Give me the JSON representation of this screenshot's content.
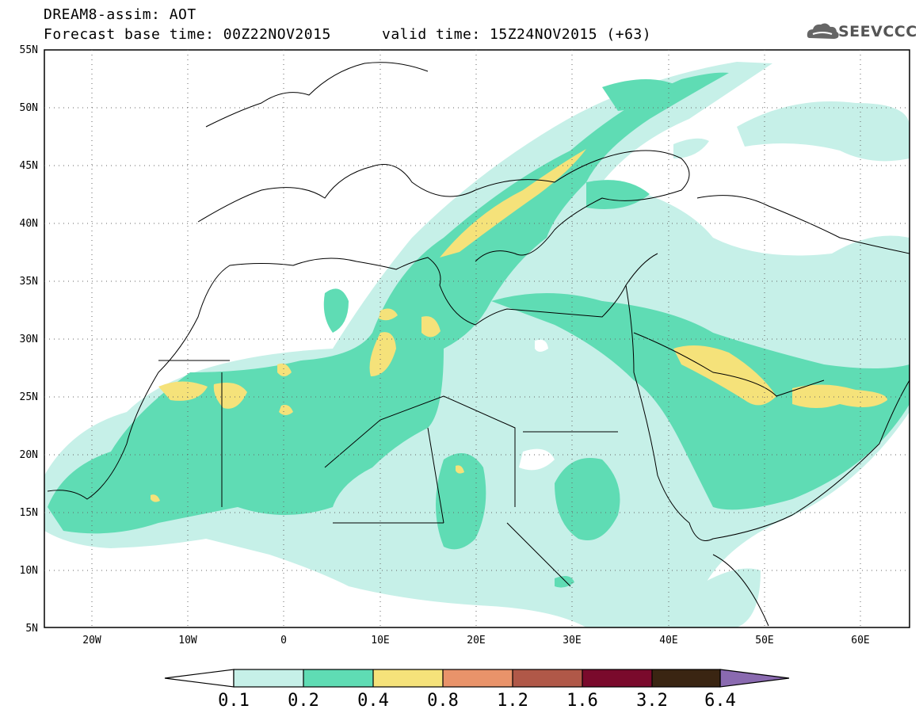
{
  "title_line1": "DREAM8-assim: AOT",
  "title_base": "Forecast base time: 00Z22NOV2015",
  "title_valid": "valid time: 15Z24NOV2015 (+63)",
  "logo_text": "SEEVCCC",
  "logo_icon": "cloud-icon",
  "map": {
    "lat_ticks": [
      "55N",
      "50N",
      "45N",
      "40N",
      "35N",
      "30N",
      "25N",
      "20N",
      "15N",
      "10N",
      "5N"
    ],
    "lon_ticks": [
      "20W",
      "10W",
      "0",
      "10E",
      "20E",
      "30E",
      "40E",
      "50E",
      "60E"
    ],
    "lon_range": [
      -25,
      65
    ],
    "lat_range": [
      5,
      55
    ]
  },
  "colorbar": {
    "levels": [
      "0.1",
      "0.2",
      "0.4",
      "0.8",
      "1.2",
      "1.6",
      "3.2",
      "6.4"
    ],
    "colors": [
      "#c6f0e8",
      "#5fdcb4",
      "#f5e27a",
      "#e9936a",
      "#b05848",
      "#7a0a2c",
      "#3a2512",
      "#8a6ab0"
    ]
  }
}
